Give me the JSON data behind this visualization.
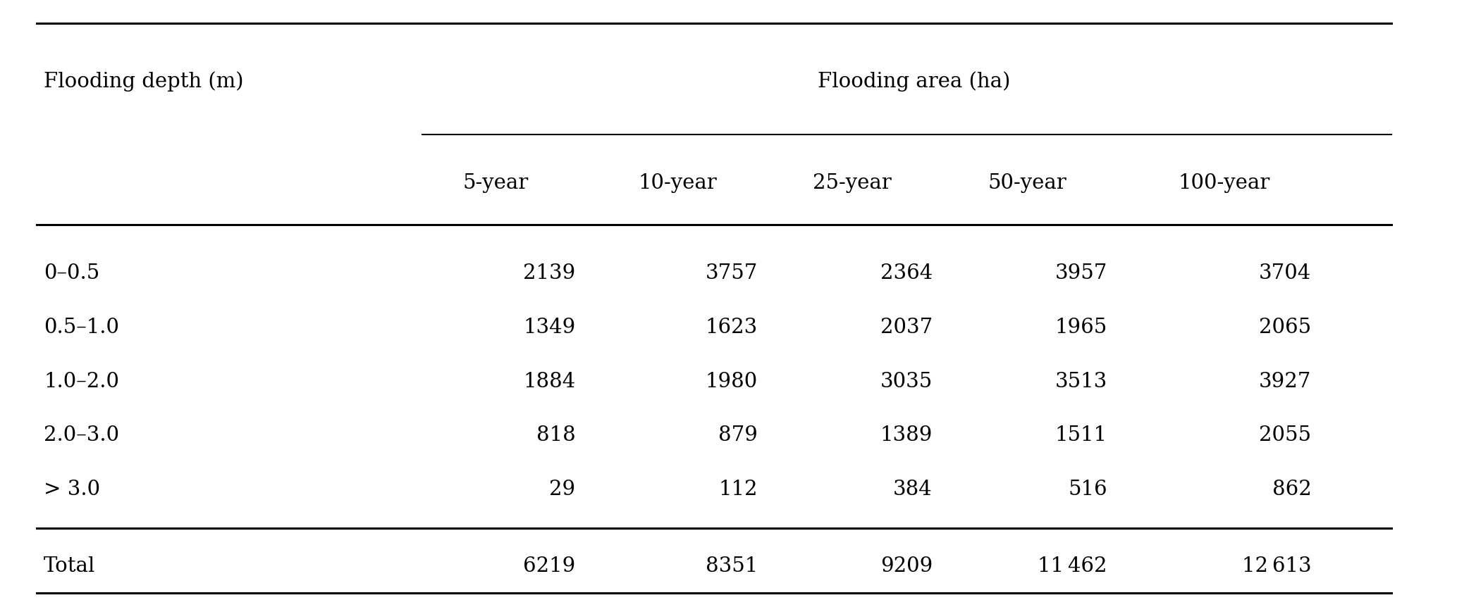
{
  "col_header_row1": [
    "Flooding depth (m)",
    "Flooding area (ha)"
  ],
  "col_header_row2": [
    "",
    "5-year",
    "10-year",
    "25-year",
    "50-year",
    "100-year"
  ],
  "rows": [
    [
      "0–0.5",
      "2139",
      "3757",
      "2364",
      "3957",
      "3704"
    ],
    [
      "0.5–1.0",
      "1349",
      "1623",
      "2037",
      "1965",
      "2065"
    ],
    [
      "1.0–2.0",
      "1884",
      "1980",
      "3035",
      "3513",
      "3927"
    ],
    [
      "2.0–3.0",
      "818",
      "879",
      "1389",
      "1511",
      "2055"
    ],
    [
      "> 3.0",
      "29",
      "112",
      "384",
      "516",
      "862"
    ]
  ],
  "total_row": [
    "Total",
    "6219",
    "8351",
    "9209",
    "11 462",
    "12 613"
  ],
  "bg_color": "#ffffff",
  "text_color": "#000000",
  "font_size": 21,
  "figwidth": 20.67,
  "figheight": 8.53,
  "dpi": 100
}
